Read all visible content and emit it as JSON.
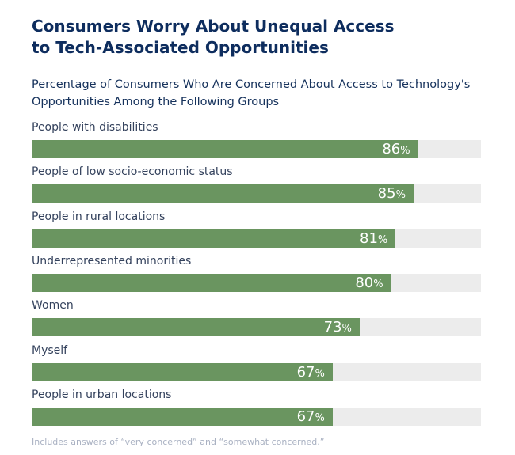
{
  "chart_data": {
    "type": "bar",
    "orientation": "horizontal",
    "title": "Consumers Worry About Unequal Access to Tech-Associated Opportunities",
    "subtitle": "Percentage of Consumers Who Are Concerned About Access to Technology's Opportunities Among the Following Groups",
    "categories": [
      "People with disabilities",
      "People of low socio-economic status",
      "People in rural locations",
      "Underrepresented minorities",
      "Women",
      "Myself",
      "People in urban locations"
    ],
    "values": [
      86,
      85,
      81,
      80,
      73,
      67,
      67
    ],
    "unit": "%",
    "xlim": [
      0,
      100
    ],
    "footnote": "Includes answers of “very concerned” and “somewhat concerned.”",
    "colors": {
      "bar": "#6a9560",
      "track": "#ececec"
    }
  },
  "title_line1": "Consumers Worry About Unequal Access",
  "title_line2": "to Tech-Associated Opportunities",
  "subtitle_line1": "Percentage of Consumers Who Are Concerned About Access to Technology's",
  "subtitle_line2": "Opportunities Among the Following Groups"
}
